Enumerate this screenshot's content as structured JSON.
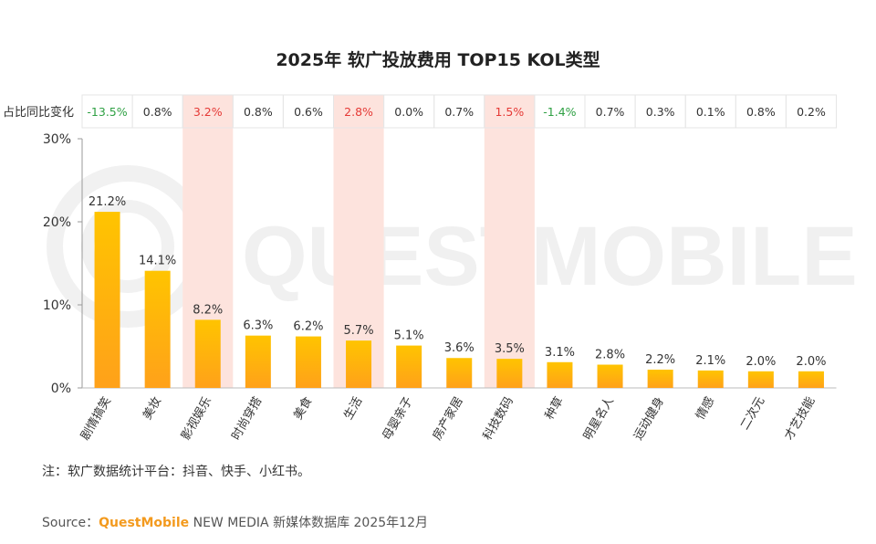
{
  "chart_data": {
    "type": "bar",
    "title": "2025年 软广投放费用 TOP15 KOL类型",
    "categories": [
      "剧情搞笑",
      "美妆",
      "影视娱乐",
      "时尚穿搭",
      "美食",
      "生活",
      "母婴亲子",
      "房产家居",
      "科技数码",
      "种草",
      "明星名人",
      "运动健身",
      "情感",
      "二次元",
      "才艺技能"
    ],
    "values": [
      21.2,
      14.1,
      8.2,
      6.3,
      6.2,
      5.7,
      5.1,
      3.6,
      3.5,
      3.1,
      2.8,
      2.2,
      2.1,
      2.0,
      2.0
    ],
    "value_labels": [
      "21.2%",
      "14.1%",
      "8.2%",
      "6.3%",
      "6.2%",
      "5.7%",
      "5.1%",
      "3.6%",
      "3.5%",
      "3.1%",
      "2.8%",
      "2.2%",
      "2.1%",
      "2.0%",
      "2.0%"
    ],
    "ylim": [
      0,
      30
    ],
    "yticks": [
      "0%",
      "10%",
      "20%",
      "30%"
    ],
    "change_row_label": "占比同比变化",
    "changes": [
      "-13.5%",
      "0.8%",
      "3.2%",
      "0.8%",
      "0.6%",
      "2.8%",
      "0.0%",
      "0.7%",
      "1.5%",
      "-1.4%",
      "0.7%",
      "0.3%",
      "0.1%",
      "0.8%",
      "0.2%"
    ],
    "highlighted_categories": [
      "影视娱乐",
      "生活",
      "科技数码"
    ],
    "colors": {
      "bar_top": "#ffc400",
      "bar_bottom": "#ffa11a",
      "highlight_band": "#fde3dd",
      "positive_highlight": "#e53935",
      "negative": "#2ea043"
    },
    "grid": false
  },
  "watermark": "QUESTMOBILE",
  "note": "注：软广数据统计平台：抖音、快手、小红书。",
  "source": {
    "prefix": "Source：",
    "brand": "QuestMobile",
    "rest": " NEW MEDIA 新媒体数据库 2025年12月"
  }
}
